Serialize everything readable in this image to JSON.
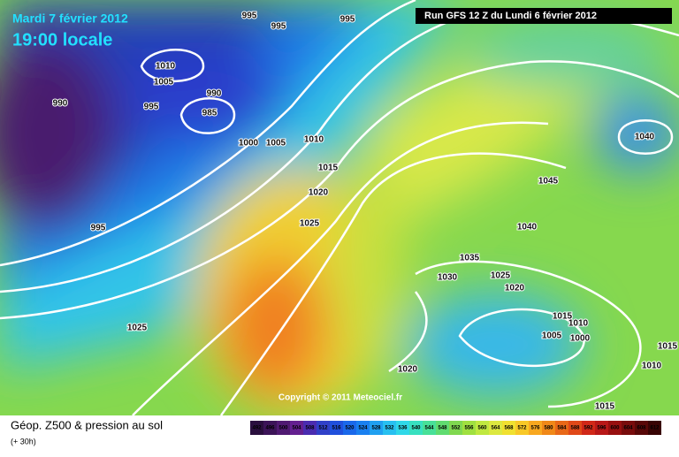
{
  "header": {
    "date": "Mardi 7 février 2012",
    "time": "19:00 locale",
    "run": "Run GFS 12 Z du Lundi 6 février 2012"
  },
  "isobar_labels": [
    995,
    995,
    995,
    1010,
    1005,
    990,
    990,
    995,
    985,
    1000,
    1005,
    1010,
    1015,
    1020,
    1025,
    995,
    1040,
    1045,
    1040,
    1035,
    1030,
    1025,
    1020,
    1015,
    1010,
    1005,
    1000,
    1025,
    1015,
    1010,
    1020,
    1015
  ],
  "copyright": "Copyright © 2011 Meteociel.fr",
  "legend": {
    "title": "Géop. Z500 & pression au sol",
    "lead_time": "(+ 30h)",
    "scale": [
      492,
      496,
      500,
      504,
      508,
      512,
      516,
      520,
      524,
      528,
      532,
      536,
      540,
      544,
      548,
      552,
      556,
      560,
      564,
      568,
      572,
      576,
      580,
      584,
      588,
      592,
      596,
      600,
      604,
      608,
      612
    ]
  }
}
